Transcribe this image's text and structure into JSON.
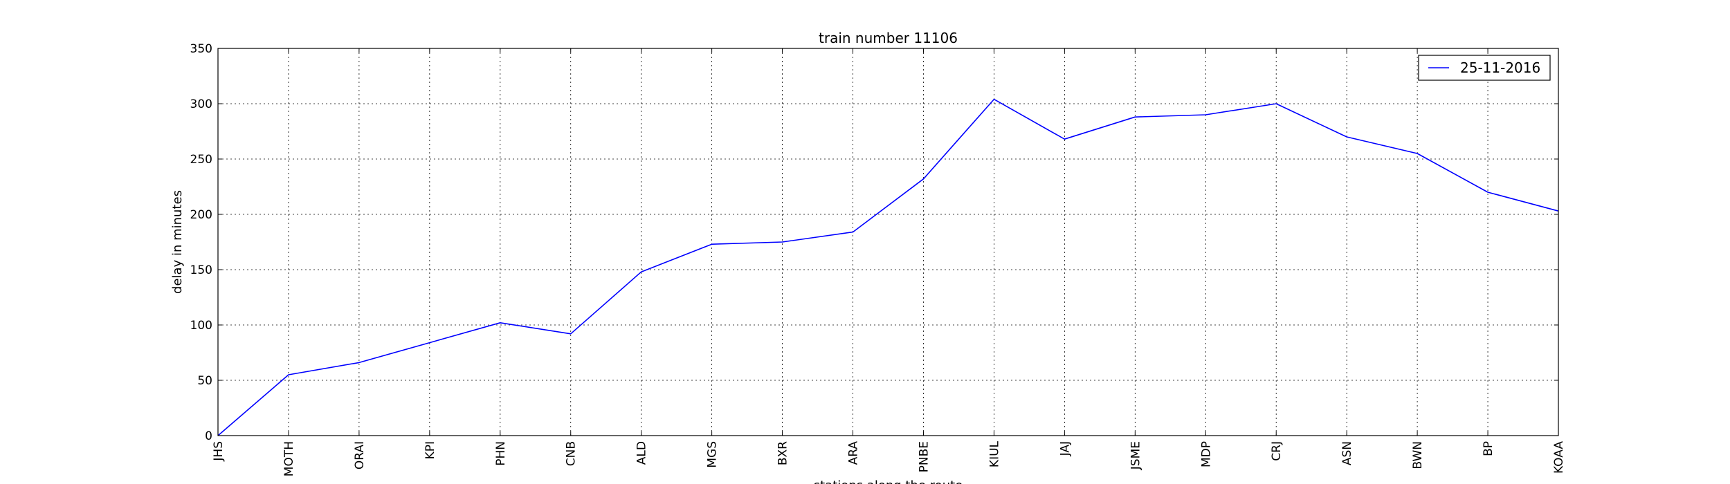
{
  "chart_data": {
    "type": "line",
    "title": "train number 11106",
    "xlabel": "stations along the route",
    "ylabel": "delay in minutes",
    "categories": [
      "JHS",
      "MOTH",
      "ORAI",
      "KPI",
      "PHN",
      "CNB",
      "ALD",
      "MGS",
      "BXR",
      "ARA",
      "PNBE",
      "KIUL",
      "JAJ",
      "JSME",
      "MDP",
      "CRJ",
      "ASN",
      "BWN",
      "BP",
      "KOAA"
    ],
    "series": [
      {
        "name": "25-11-2016",
        "color": "#0000ff",
        "values": [
          0,
          55,
          66,
          84,
          102,
          92,
          148,
          173,
          175,
          184,
          232,
          304,
          268,
          288,
          290,
          300,
          270,
          255,
          220,
          203
        ]
      }
    ],
    "ylim": [
      0,
      350
    ],
    "yticks": [
      0,
      50,
      100,
      150,
      200,
      250,
      300,
      350
    ],
    "grid": true,
    "legend_position": "top-right"
  }
}
